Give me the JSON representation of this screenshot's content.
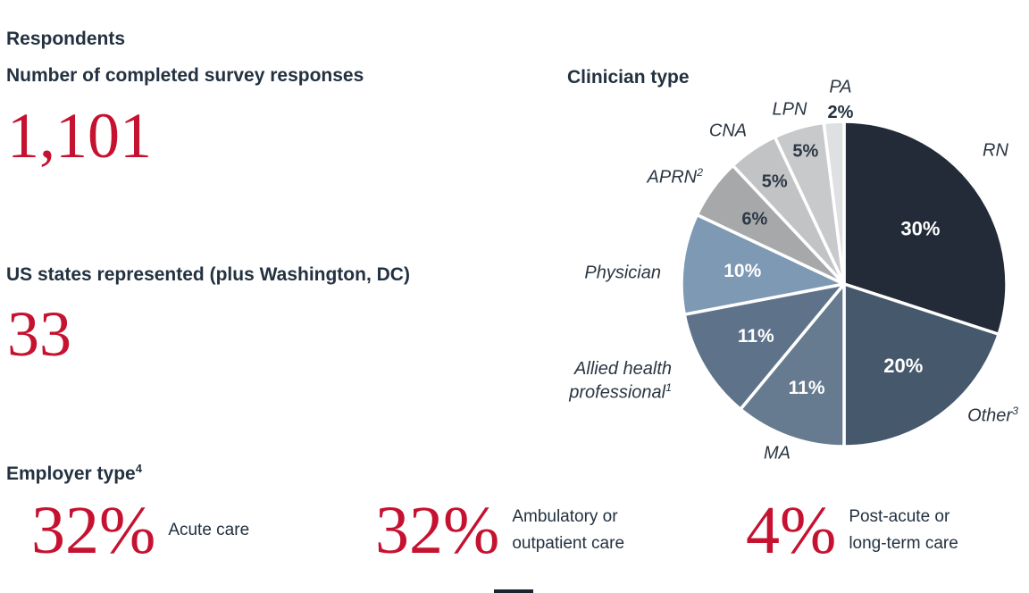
{
  "page": {
    "title": "Respondents",
    "accent_red": "#c51230",
    "text_dark": "#233140"
  },
  "stats": {
    "responses": {
      "label": "Number of completed survey responses",
      "value": "1,101"
    },
    "states": {
      "label": "US states represented (plus Washington, DC)",
      "value": "33"
    }
  },
  "employer": {
    "heading": "Employer type",
    "heading_sup": "4",
    "items": [
      {
        "value": "32%",
        "label_line1": "Acute care",
        "label_line2": ""
      },
      {
        "value": "32%",
        "label_line1": "Ambulatory or",
        "label_line2": "outpatient care"
      },
      {
        "value": "4%",
        "label_line1": "Post-acute or",
        "label_line2": "long-term care"
      }
    ]
  },
  "chart_data": {
    "type": "pie",
    "title": "Clinician type",
    "start_angle_deg": 0,
    "direction": "clockwise",
    "legend_position": "outside-labels",
    "slices": [
      {
        "label": "RN",
        "sup": "",
        "value": 30,
        "color": "#222b37",
        "value_color": "#ffffff"
      },
      {
        "label": "Other",
        "sup": "3",
        "value": 20,
        "color": "#46586b",
        "value_color": "#ffffff"
      },
      {
        "label": "MA",
        "sup": "",
        "value": 11,
        "color": "#667b90",
        "value_color": "#ffffff"
      },
      {
        "label": "Allied health professional",
        "sup": "1",
        "value": 11,
        "color": "#5e738a",
        "value_color": "#ffffff"
      },
      {
        "label": "Physician",
        "sup": "",
        "value": 10,
        "color": "#7e99b4",
        "value_color": "#ffffff"
      },
      {
        "label": "APRN",
        "sup": "2",
        "value": 6,
        "color": "#a7a8aa",
        "value_color": "#2c3947"
      },
      {
        "label": "CNA",
        "sup": "",
        "value": 5,
        "color": "#c2c3c4",
        "value_color": "#2c3947"
      },
      {
        "label": "LPN",
        "sup": "",
        "value": 5,
        "color": "#c8c9ca",
        "value_color": "#2c3947"
      },
      {
        "label": "PA",
        "sup": "",
        "value": 2,
        "color": "#dfe0e1",
        "value_color": "#233140"
      }
    ]
  }
}
